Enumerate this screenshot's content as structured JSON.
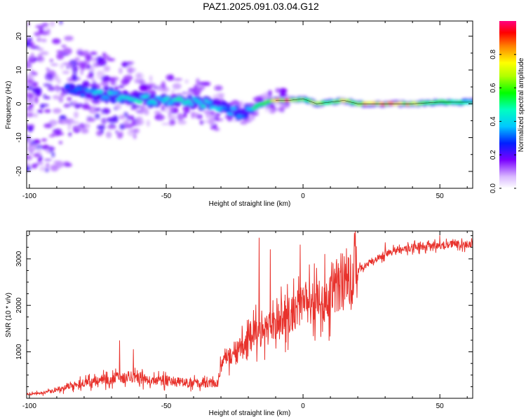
{
  "figure_title": "PAZ1.2025.091.03.04.G12",
  "colors": {
    "snr_line": "#e8322c",
    "axis": "#000000",
    "background": "#ffffff"
  },
  "chart_data": [
    {
      "type": "heatmap",
      "name": "spectrogram",
      "title": "",
      "xlabel": "Height of straight line (km)",
      "ylabel": "Frequency (Hz)",
      "xlim": [
        -101,
        62
      ],
      "ylim": [
        -25,
        24.5
      ],
      "xticks": [
        -100,
        -50,
        0,
        50
      ],
      "yticks": [
        -20,
        -10,
        0,
        10,
        20
      ],
      "colorbar": {
        "label": "Normalized spectral amplitude",
        "range": [
          0.0,
          1.0
        ],
        "ticks": [
          0.0,
          0.2,
          0.4,
          0.6,
          0.8
        ],
        "tick_labels": [
          "0.0",
          "0.2",
          "0.4",
          "0.6",
          "0.8"
        ],
        "colormap": "white-violet-blue-cyan-green-yellow-red-magenta"
      },
      "ridge": {
        "description_of_values": "center frequency (Hz) of dominant signal band vs height (km)",
        "x": [
          -85,
          -80,
          -75,
          -70,
          -65,
          -60,
          -55,
          -50,
          -45,
          -40,
          -35,
          -30,
          -25,
          -22,
          -20,
          -15,
          -10,
          -5,
          0,
          5,
          10,
          15,
          20,
          30,
          40,
          50,
          62
        ],
        "y": [
          4,
          3.5,
          3,
          2.5,
          2,
          1.5,
          1,
          1,
          0.5,
          0.5,
          0,
          -1,
          -2.5,
          -3,
          -2,
          0,
          1,
          1,
          1.5,
          0,
          0.5,
          1,
          0,
          0,
          0,
          0.5,
          0.5
        ],
        "peak_amplitude": [
          0.3,
          0.35,
          0.4,
          0.45,
          0.45,
          0.5,
          0.45,
          0.45,
          0.45,
          0.45,
          0.4,
          0.4,
          0.35,
          0.3,
          0.4,
          0.55,
          0.8,
          0.9,
          0.6,
          0.8,
          0.55,
          0.75,
          0.7,
          0.85,
          0.75,
          0.6,
          0.45
        ]
      }
    },
    {
      "type": "line",
      "name": "snr",
      "title": "",
      "xlabel": "Height of straight line (km)",
      "ylabel": "SNR (10 * v/v)",
      "xlim": [
        -101,
        62
      ],
      "ylim": [
        0,
        3600
      ],
      "xticks": [
        -100,
        -50,
        0,
        50
      ],
      "yticks": [
        1000,
        2000,
        3000
      ],
      "series": [
        {
          "description_of_values": "SNR envelope trend vs height",
          "x": [
            -101,
            -95,
            -90,
            -85,
            -80,
            -75,
            -70,
            -65,
            -60,
            -55,
            -50,
            -45,
            -40,
            -35,
            -31,
            -30,
            -27,
            -25,
            -22,
            -20,
            -17,
            -15,
            -12,
            -10,
            -7,
            -5,
            -2,
            0,
            2,
            5,
            8,
            10,
            12,
            15,
            18,
            20,
            25,
            30,
            35,
            40,
            45,
            50,
            55,
            62
          ],
          "values": [
            80,
            120,
            180,
            260,
            330,
            380,
            420,
            460,
            440,
            400,
            380,
            350,
            330,
            320,
            340,
            700,
            900,
            1000,
            1100,
            1250,
            1400,
            1450,
            1550,
            1650,
            1750,
            1800,
            1900,
            2000,
            2050,
            2100,
            2150,
            2250,
            2350,
            2450,
            2600,
            2750,
            2950,
            3100,
            3200,
            3250,
            3280,
            3300,
            3310,
            3320
          ]
        },
        {
          "description_of_values": "notable SNR spikes (height km, SNR)",
          "x": [
            -67,
            -62,
            -16,
            -12,
            -1,
            1,
            5,
            8,
            11,
            15,
            30,
            50
          ],
          "values": [
            1240,
            1050,
            3450,
            3200,
            3300,
            2500,
            2800,
            3100,
            2900,
            3050,
            3350,
            3500
          ]
        }
      ]
    }
  ]
}
